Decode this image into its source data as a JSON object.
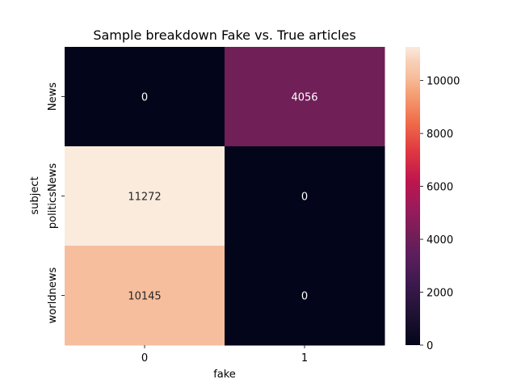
{
  "chart_data": {
    "type": "heatmap",
    "title": "Sample breakdown Fake vs. True articles",
    "xlabel": "fake",
    "ylabel": "subject",
    "x_categories": [
      "0",
      "1"
    ],
    "y_categories": [
      "News",
      "politicsNews",
      "worldnews"
    ],
    "values": [
      [
        0,
        4056
      ],
      [
        11272,
        0
      ],
      [
        10145,
        0
      ]
    ],
    "value_labels": [
      [
        "0",
        "4056"
      ],
      [
        "11272",
        "0"
      ],
      [
        "10145",
        "0"
      ]
    ],
    "colorbar": {
      "min": 0,
      "max": 11272,
      "ticks": [
        0,
        2000,
        4000,
        6000,
        8000,
        10000
      ],
      "tick_labels": [
        "0",
        "2000",
        "4000",
        "6000",
        "8000",
        "10000"
      ],
      "colormap": "rocket"
    },
    "cell_label_colors": {
      "on_dark": "#ffffff",
      "on_light": "#262626"
    }
  }
}
